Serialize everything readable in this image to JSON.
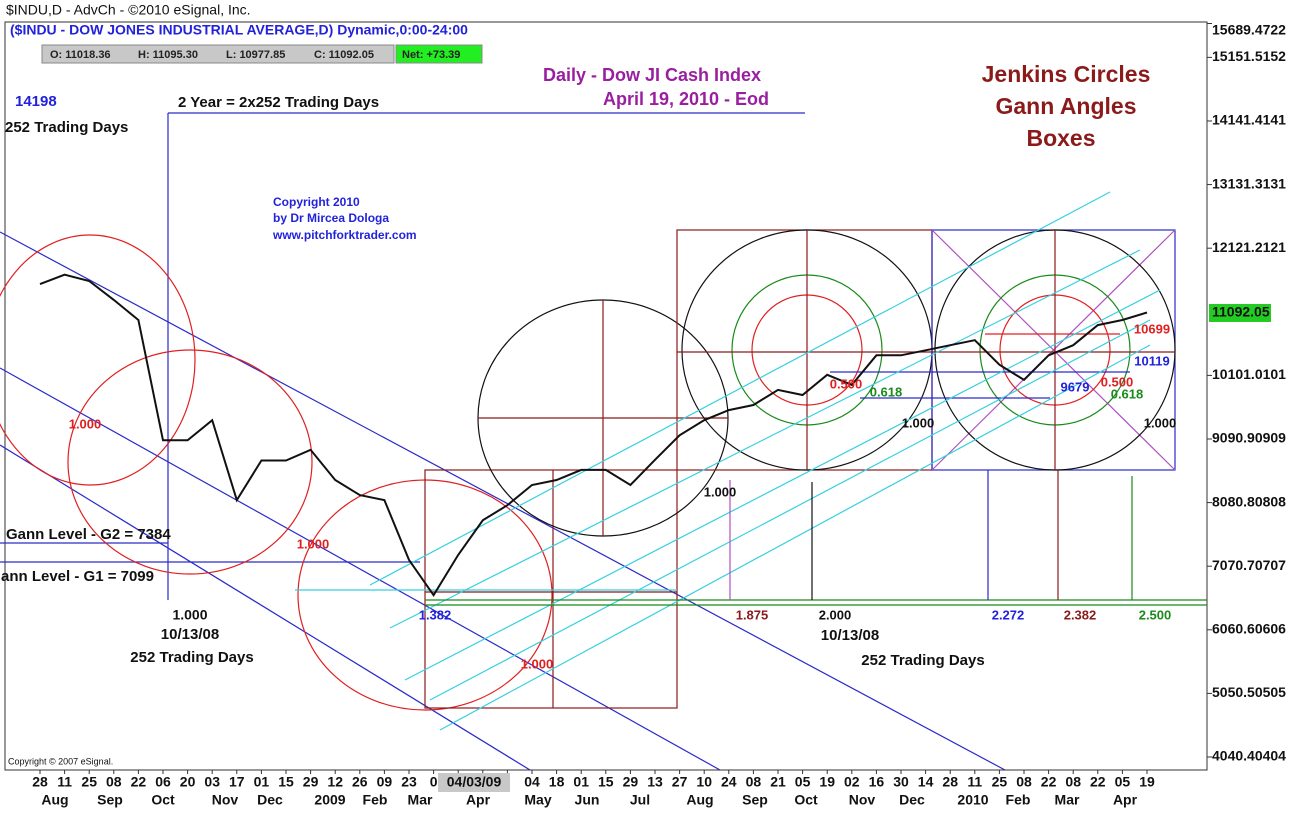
{
  "window_title": "$INDU,D - AdvCh - ©2010 eSignal, Inc.",
  "chart_data": {
    "type": "line",
    "title": "($INDU - DOW JONES INDUSTRIAL AVERAGE,D) Dynamic,0:00-24:00",
    "quote": {
      "open": "O: 11018.36",
      "high": "H: 11095.30",
      "low": "L: 10977.85",
      "close": "C: 11092.05",
      "net": "Net: +73.39"
    },
    "categories": [
      "28",
      "11",
      "25",
      "08",
      "22",
      "06",
      "20",
      "03",
      "17",
      "01",
      "15",
      "29",
      "12",
      "26",
      "09",
      "23",
      "0",
      null,
      null,
      null,
      "04",
      "18",
      "01",
      "15",
      "29",
      "13",
      "27",
      "10",
      "24",
      "08",
      "21",
      "05",
      "19",
      "02",
      "16",
      "30",
      "14",
      "28",
      "11",
      "25",
      "08",
      "22",
      "08",
      "22",
      "05",
      "19"
    ],
    "months": [
      "Aug",
      "Sep",
      "Oct",
      "Nov",
      "Dec",
      "2009",
      "Feb",
      "Mar",
      "Apr",
      "May",
      "Jun",
      "Jul",
      "Aug",
      "Sep",
      "Oct",
      "Nov",
      "Dec",
      "2010",
      "Feb",
      "Mar",
      "Apr"
    ],
    "cursor_date": "04/03/09",
    "series": [
      {
        "name": "$INDU",
        "color": "#111111",
        "values": [
          11550,
          11700,
          11600,
          11300,
          10980,
          9070,
          9070,
          9390,
          8120,
          8750,
          8750,
          8920,
          8440,
          8200,
          8120,
          7170,
          6610,
          7250,
          7800,
          8040,
          8360,
          8440,
          8600,
          8600,
          8360,
          8760,
          9150,
          9390,
          9550,
          9630,
          9870,
          9790,
          10110,
          9950,
          10420,
          10420,
          10500,
          10580,
          10660,
          10270,
          10030,
          10420,
          10580,
          10900,
          10980,
          11100
        ]
      }
    ],
    "ylim": [
      3834,
      15689.4722
    ],
    "yticks": [
      15689.4722,
      15151.5152,
      14141.4141,
      13131.3131,
      12121.2121,
      10101.0101,
      9090.90909,
      8080.80808,
      7070.70707,
      6060.60606,
      5050.50505,
      4040.40404
    ],
    "last_price": 11092.05,
    "last_price_color": "#22cc22",
    "grid": false,
    "annotations": [
      {
        "text": "Daily - Dow JI Cash Index",
        "color": "#9a1fa0"
      },
      {
        "text": "April 19, 2010 - Eod",
        "color": "#9a1fa0"
      },
      {
        "text": "Jenkins Circles",
        "color": "#8b1a1a"
      },
      {
        "text": "Gann Angles",
        "color": "#8b1a1a"
      },
      {
        "text": "Boxes",
        "color": "#8b1a1a"
      },
      {
        "text": "14198",
        "color": "#2222dd"
      },
      {
        "text": "2 Year = 2x252 Trading Days",
        "color": "#111111"
      },
      {
        "text": "252 Trading Days",
        "color": "#111111"
      },
      {
        "text": "Copyright 2010",
        "color": "#2222dd"
      },
      {
        "text": "by Dr Mircea Dologa",
        "color": "#2222dd"
      },
      {
        "text": "www.pitchforktrader.com",
        "color": "#2222dd"
      },
      {
        "text": "Gann Level - G2 = 7384",
        "color": "#111111"
      },
      {
        "text": "ann Level - G1 = 7099",
        "color": "#111111"
      },
      {
        "text": "1.000",
        "color": "#e02020"
      },
      {
        "text": "1.000",
        "color": "#e02020"
      },
      {
        "text": "1.000",
        "color": "#e02020"
      },
      {
        "text": "1.000",
        "color": "#111111"
      },
      {
        "text": "1.000",
        "color": "#111111"
      },
      {
        "text": "1.000",
        "color": "#111111"
      },
      {
        "text": "1.000",
        "color": "#111111"
      },
      {
        "text": "10/13/08",
        "color": "#111111"
      },
      {
        "text": "252 Trading Days",
        "color": "#111111"
      },
      {
        "text": "1.382",
        "color": "#2222dd"
      },
      {
        "text": "1.875",
        "color": "#8b1a1a"
      },
      {
        "text": "2.000",
        "color": "#111111"
      },
      {
        "text": "10/13/08",
        "color": "#111111"
      },
      {
        "text": "252 Trading Days",
        "color": "#111111"
      },
      {
        "text": "2.272",
        "color": "#2222dd"
      },
      {
        "text": "2.382",
        "color": "#8b1a1a"
      },
      {
        "text": "2.500",
        "color": "#1a8a1a"
      },
      {
        "text": "0.500",
        "color": "#e02020"
      },
      {
        "text": "0.618",
        "color": "#1a8a1a"
      },
      {
        "text": "10699",
        "color": "#e02020"
      },
      {
        "text": "10119",
        "color": "#2222dd"
      },
      {
        "text": "9679",
        "color": "#2222dd"
      },
      {
        "text": "0.500",
        "color": "#e02020"
      },
      {
        "text": "0.618",
        "color": "#1a8a1a"
      },
      {
        "text": "Copyright © 2007 eSignal.",
        "color": "#111111"
      }
    ]
  }
}
